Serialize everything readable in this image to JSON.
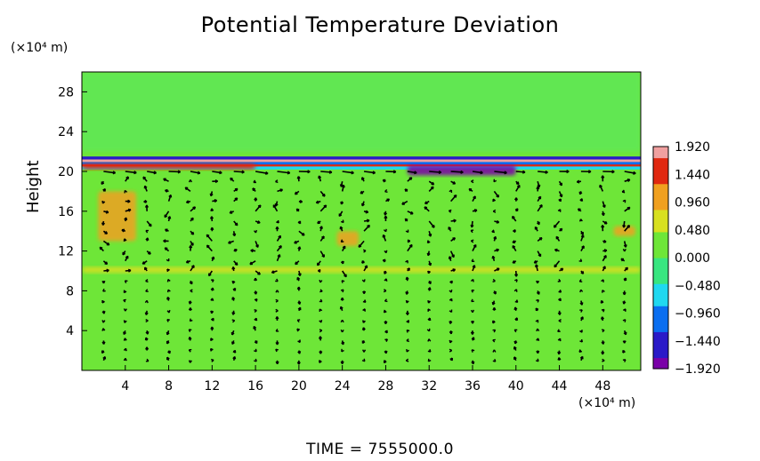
{
  "chart_data": {
    "type": "heatmap",
    "title": "Potential Temperature Deviation",
    "ylabel": "Height",
    "xlabel": "",
    "x_unit": "(×10⁴ m)",
    "y_unit": "(×10⁴ m)",
    "footer": "TIME = 7555000.0",
    "xlim": [
      0,
      51.5
    ],
    "ylim": [
      0,
      30
    ],
    "x_ticks": [
      "4",
      "8",
      "12",
      "16",
      "20",
      "24",
      "28",
      "32",
      "36",
      "40",
      "44",
      "48"
    ],
    "x_tick_values": [
      4,
      8,
      12,
      16,
      20,
      24,
      28,
      32,
      36,
      40,
      44,
      48
    ],
    "y_ticks": [
      "4",
      "8",
      "12",
      "16",
      "20",
      "24",
      "28"
    ],
    "y_tick_values": [
      4,
      8,
      12,
      16,
      20,
      24,
      28
    ],
    "colorbar": {
      "labels": [
        "1.920",
        "1.440",
        "0.960",
        "0.480",
        "0.000",
        "−0.480",
        "−0.960",
        "−1.440",
        "−1.920"
      ],
      "values": [
        1.92,
        1.44,
        0.96,
        0.48,
        0.0,
        -0.48,
        -0.96,
        -1.44,
        -1.92
      ],
      "range": [
        -1.92,
        1.92
      ],
      "colormap": [
        "#7a00a8",
        "#2a1ac8",
        "#0a6ef0",
        "#20d8f0",
        "#38e680",
        "#6ee638",
        "#d8e020",
        "#f0a020",
        "#e02810",
        "#f0a0a0"
      ]
    },
    "background_value": 0.0,
    "features": [
      {
        "type": "band",
        "y": [
          20.5,
          21.6
        ],
        "x": [
          0,
          51.5
        ],
        "value_range": [
          -1.92,
          1.92
        ],
        "description_value": "alternating strong positive/negative layers"
      },
      {
        "type": "anomaly",
        "x": [
          30,
          40
        ],
        "y": [
          19.6,
          20.6
        ],
        "value": -1.92
      },
      {
        "type": "anomaly",
        "x": [
          0,
          16
        ],
        "y": [
          20.2,
          20.8
        ],
        "value": 1.44
      },
      {
        "type": "anomaly",
        "x": [
          1.5,
          5
        ],
        "y": [
          13,
          18
        ],
        "value": 0.96
      },
      {
        "type": "anomaly",
        "x": [
          23.5,
          25.5
        ],
        "y": [
          12.5,
          14
        ],
        "value": 0.96
      },
      {
        "type": "anomaly",
        "x": [
          49,
          51
        ],
        "y": [
          13.5,
          14.5
        ],
        "value": 0.96
      },
      {
        "type": "anomaly",
        "x": [
          0,
          51.5
        ],
        "y": [
          9.8,
          10.4
        ],
        "value": 0.48
      }
    ],
    "grid": false,
    "colorbar_position": "right"
  }
}
